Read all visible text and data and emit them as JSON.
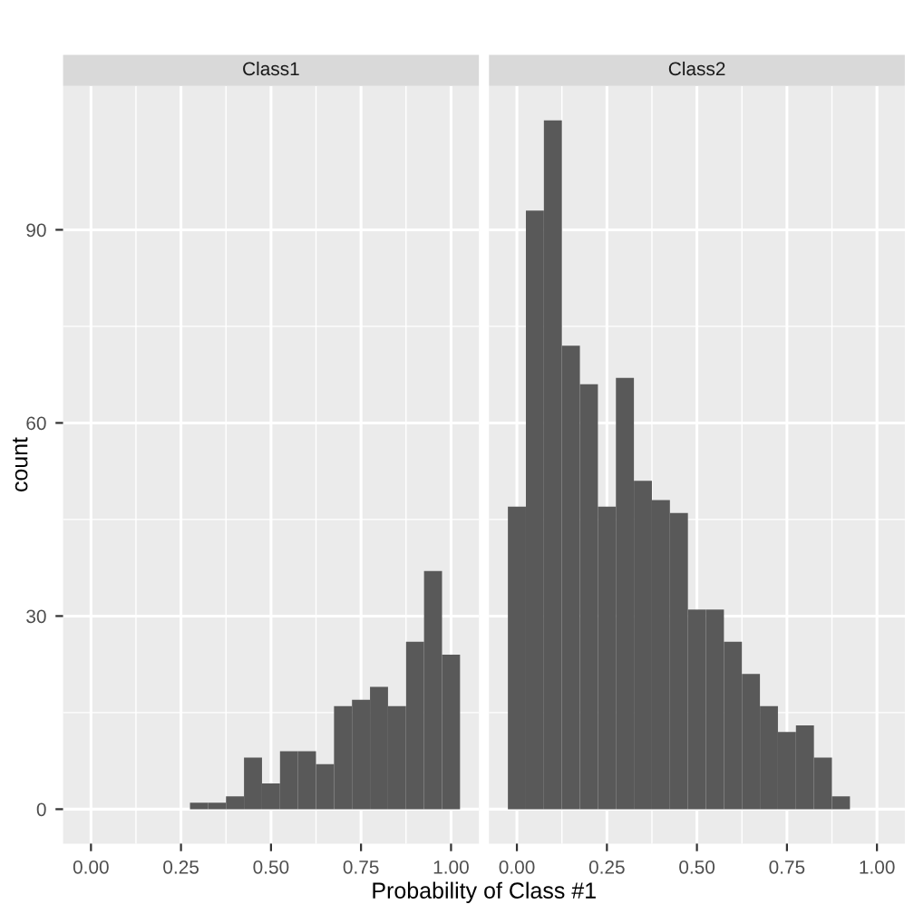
{
  "chart_data": [
    {
      "type": "histogram",
      "title": "Class1",
      "ylabel": "count",
      "xlabel": "Probability of Class #1",
      "color": "#595959",
      "bins": [
        -0.025,
        0.025,
        0.075,
        0.125,
        0.175,
        0.225,
        0.275,
        0.325,
        0.375,
        0.425,
        0.475,
        0.525,
        0.575,
        0.625,
        0.675,
        0.725,
        0.775,
        0.825,
        0.875,
        0.925,
        0.975,
        1.025
      ],
      "values": [
        0,
        0,
        0,
        0,
        0,
        0,
        1,
        1,
        2,
        8,
        4,
        9,
        9,
        7,
        16,
        17,
        19,
        16,
        26,
        37,
        24
      ],
      "xlim": [
        -0.0775,
        1.0775
      ],
      "ylim": [
        -5.35,
        112.35
      ],
      "xticks": [
        {
          "value": 0,
          "label": "0.00"
        },
        {
          "value": 0.25,
          "label": "0.25"
        },
        {
          "value": 0.5,
          "label": "0.50"
        },
        {
          "value": 0.75,
          "label": "0.75"
        },
        {
          "value": 1,
          "label": "1.00"
        }
      ],
      "yticks": [
        0,
        30,
        60,
        90
      ],
      "grid": true
    },
    {
      "type": "histogram",
      "title": "Class2",
      "color": "#595959",
      "bins": [
        -0.025,
        0.025,
        0.075,
        0.125,
        0.175,
        0.225,
        0.275,
        0.325,
        0.375,
        0.425,
        0.475,
        0.525,
        0.575,
        0.625,
        0.675,
        0.725,
        0.775,
        0.825,
        0.875,
        0.925,
        0.975,
        1.025
      ],
      "values": [
        47,
        93,
        107,
        72,
        66,
        47,
        67,
        51,
        48,
        46,
        31,
        31,
        26,
        21,
        16,
        12,
        13,
        8,
        2,
        0,
        0
      ],
      "xlim": [
        -0.0775,
        1.0775
      ],
      "ylim": [
        -5.35,
        112.35
      ],
      "xticks": [
        {
          "value": 0,
          "label": "0.00"
        },
        {
          "value": 0.25,
          "label": "0.25"
        },
        {
          "value": 0.5,
          "label": "0.50"
        },
        {
          "value": 0.75,
          "label": "0.75"
        },
        {
          "value": 1,
          "label": "1.00"
        }
      ],
      "yticks": [
        0,
        30,
        60,
        90
      ],
      "grid": true,
      "tick_labels": "x"
    }
  ]
}
